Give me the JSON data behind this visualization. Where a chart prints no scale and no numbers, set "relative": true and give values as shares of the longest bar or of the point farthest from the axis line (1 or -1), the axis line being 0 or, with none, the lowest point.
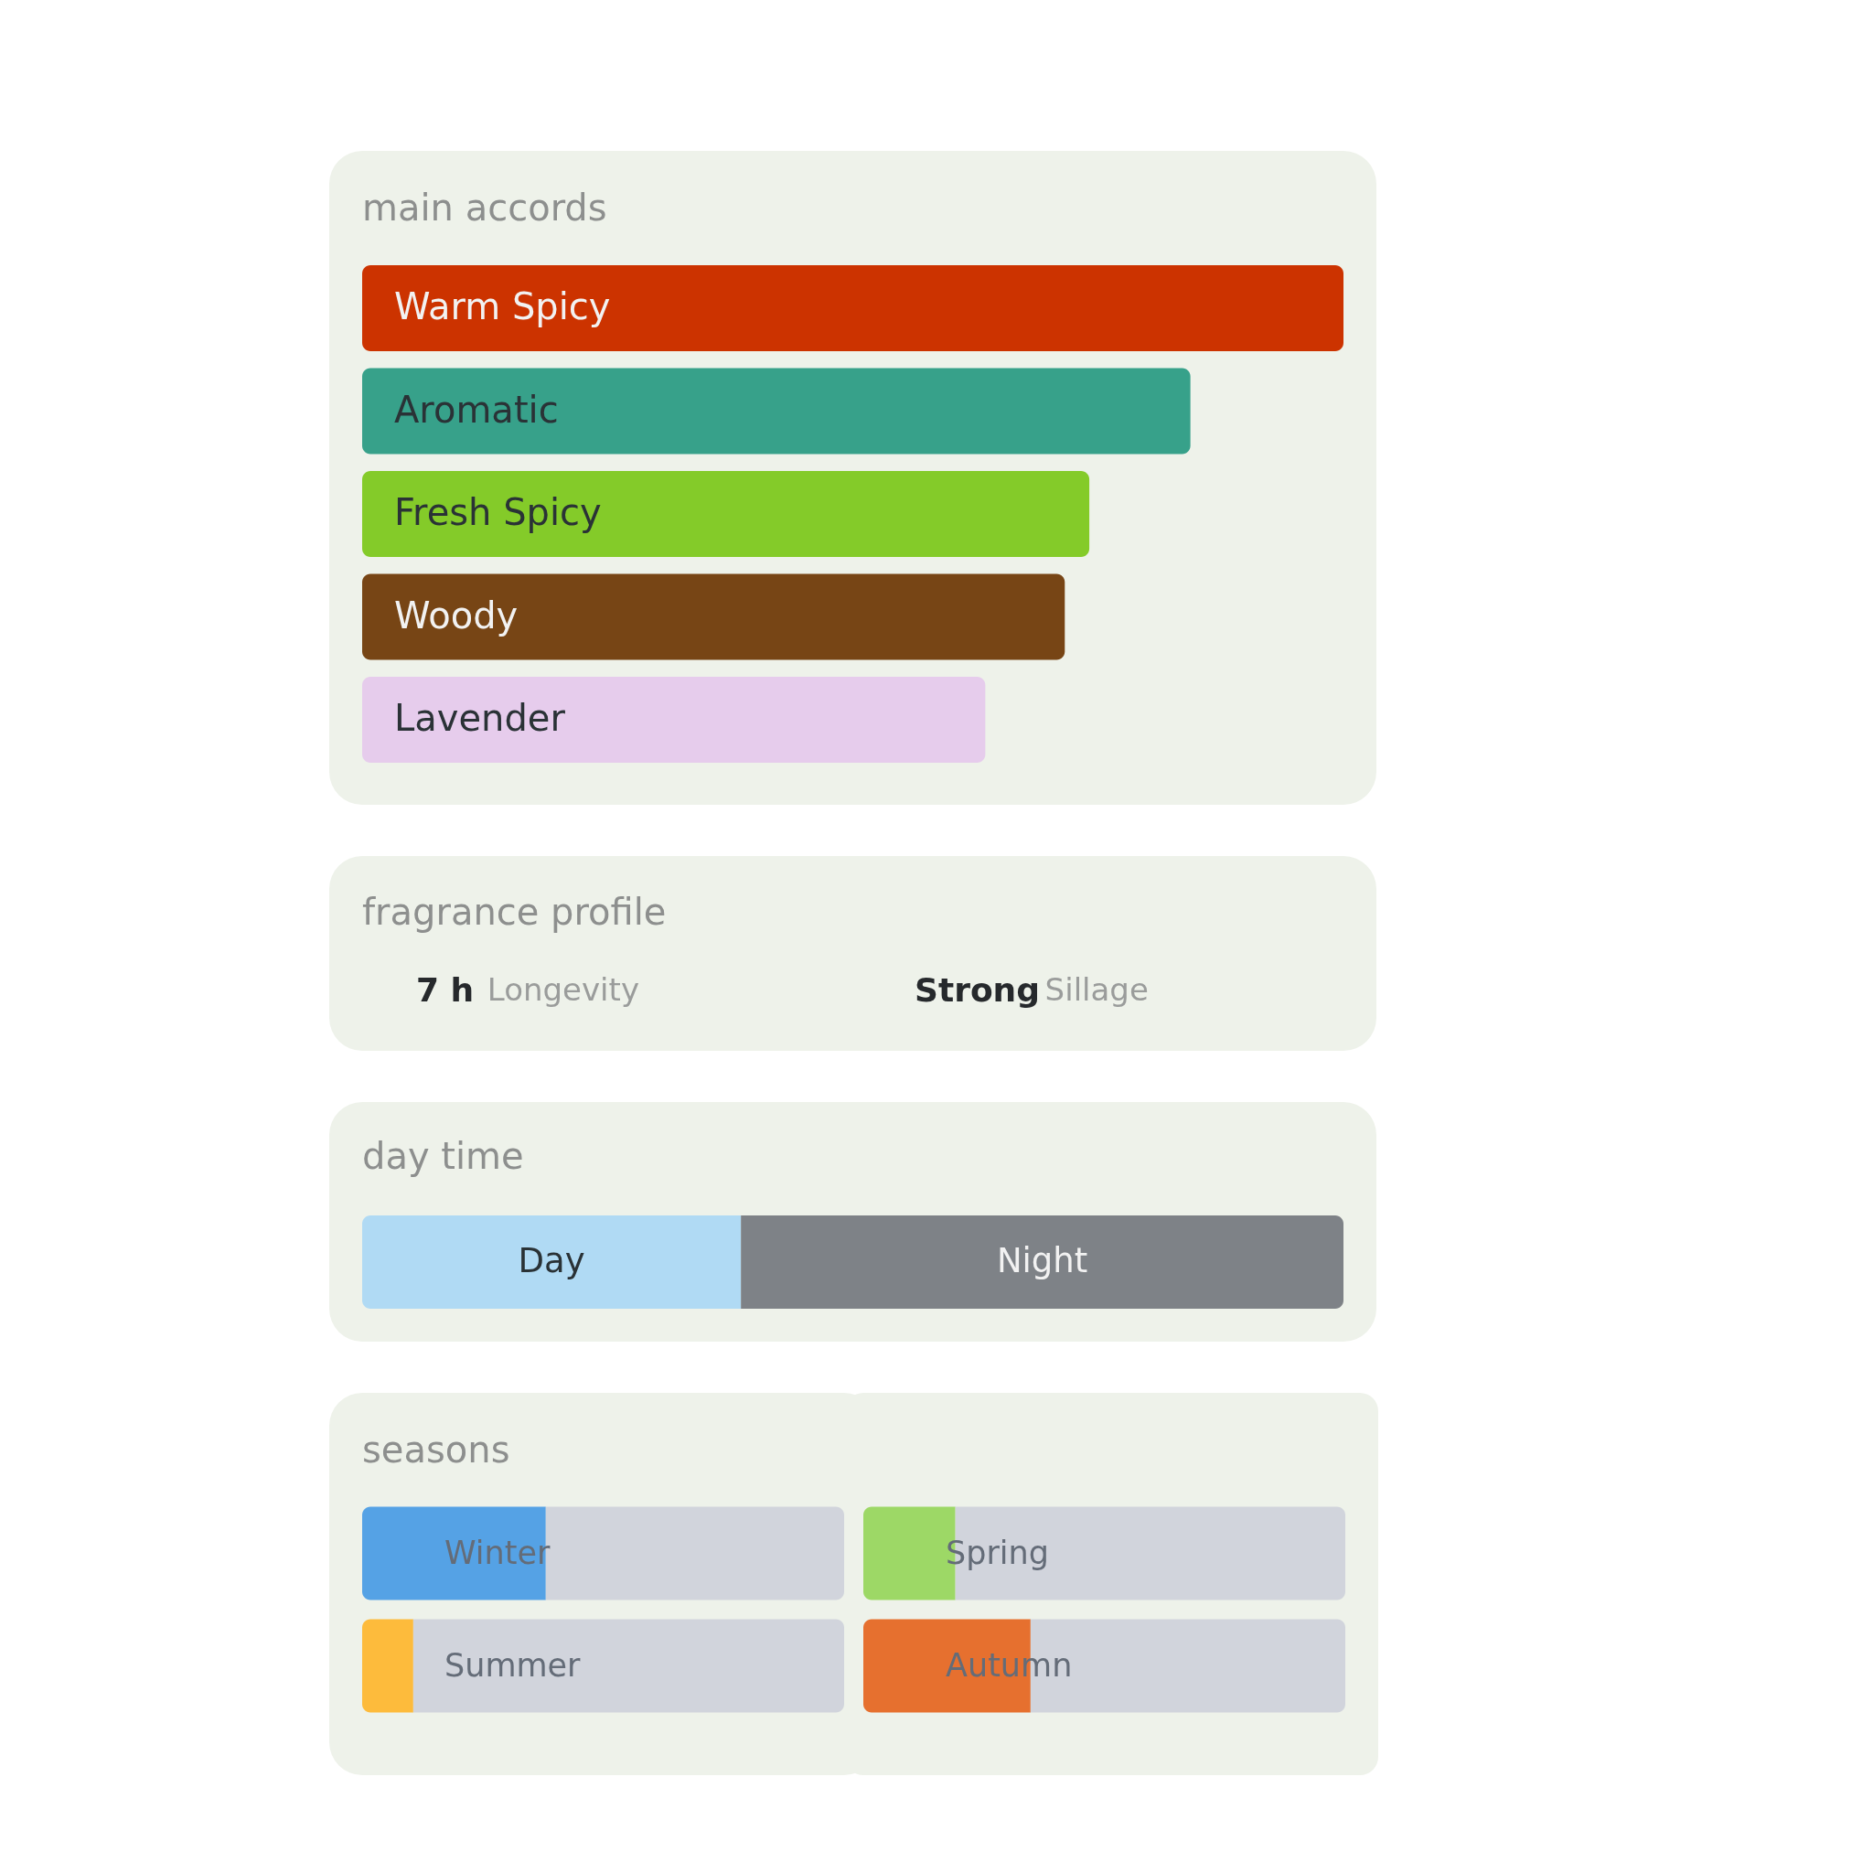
{
  "chart_data": [
    {
      "type": "bar",
      "title": "main accords",
      "orientation": "horizontal",
      "relative": true,
      "categories": [
        "Warm Spicy",
        "Aromatic",
        "Fresh Spicy",
        "Woody",
        "Lavender"
      ],
      "values": [
        1,
        0.844,
        0.741,
        0.716,
        0.635
      ],
      "colors": [
        "#cc3300",
        "#37a18a",
        "#84cb29",
        "#774515",
        "#e6ccec"
      ]
    },
    {
      "type": "other",
      "title": "fragrance profile",
      "annotations": [
        "7 h",
        "Longevity",
        "Strong",
        "Sillage"
      ]
    },
    {
      "type": "bar",
      "title": "day time",
      "orientation": "horizontal",
      "relative": true,
      "stacked": true,
      "categories": [
        null
      ],
      "series": [
        {
          "name": "Day",
          "color": "#b0daf4",
          "values": [
            0.386
          ]
        },
        {
          "name": "Night",
          "color": "#7e8287",
          "values": [
            0.614
          ]
        }
      ]
    },
    {
      "type": "bar",
      "title": "seasons",
      "orientation": "horizontal",
      "relative": true,
      "stacked": true,
      "categories": [
        "Winter",
        "Summer"
      ],
      "series": [
        {
          "colors": [
            "#55a2e5",
            "#fdbb3c"
          ],
          "values": [
            0.381,
            0.106
          ]
        },
        {
          "color": "#d1d4dc",
          "values": [
            0.619,
            0.894
          ]
        }
      ]
    },
    {
      "type": "bar",
      "orientation": "horizontal",
      "relative": true,
      "stacked": true,
      "categories": [
        "Spring",
        "Autumn"
      ],
      "series": [
        {
          "colors": [
            "#9dd866",
            "#e6702f"
          ],
          "values": [
            0.191,
            0.347
          ]
        },
        {
          "color": "#d1d4dc",
          "values": [
            0.809,
            0.653
          ]
        }
      ]
    }
  ]
}
